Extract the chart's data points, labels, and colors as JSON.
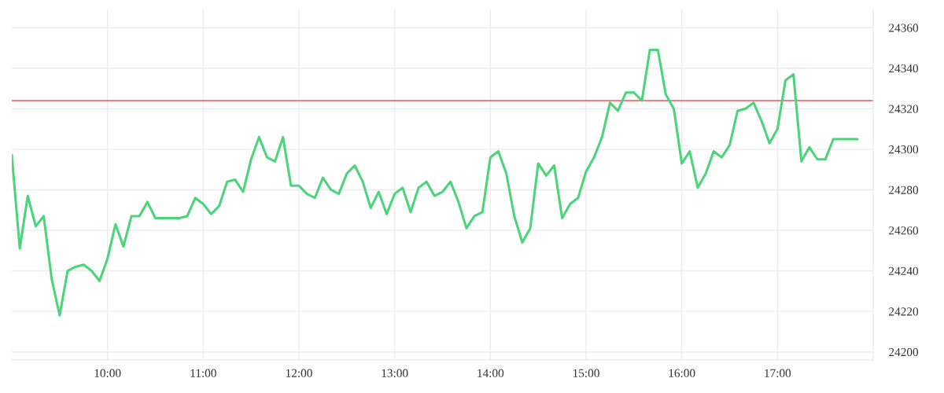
{
  "chart_data": {
    "type": "line",
    "x": [
      9.0,
      9.0833,
      9.1667,
      9.25,
      9.3333,
      9.4167,
      9.5,
      9.5833,
      9.6667,
      9.75,
      9.8333,
      9.9167,
      10.0,
      10.0833,
      10.1667,
      10.25,
      10.3333,
      10.4167,
      10.5,
      10.5833,
      10.6667,
      10.75,
      10.8333,
      10.9167,
      11.0,
      11.0833,
      11.1667,
      11.25,
      11.3333,
      11.4167,
      11.5,
      11.5833,
      11.6667,
      11.75,
      11.8333,
      11.9167,
      12.0,
      12.0833,
      12.1667,
      12.25,
      12.3333,
      12.4167,
      12.5,
      12.5833,
      12.6667,
      12.75,
      12.8333,
      12.9167,
      13.0,
      13.0833,
      13.1667,
      13.25,
      13.3333,
      13.4167,
      13.5,
      13.5833,
      13.6667,
      13.75,
      13.8333,
      13.9167,
      14.0,
      14.0833,
      14.1667,
      14.25,
      14.3333,
      14.4167,
      14.5,
      14.5833,
      14.6667,
      14.75,
      14.8333,
      14.9167,
      15.0,
      15.0833,
      15.1667,
      15.25,
      15.3333,
      15.4167,
      15.5,
      15.5833,
      15.6667,
      15.75,
      15.8333,
      15.9167,
      16.0,
      16.0833,
      16.1667,
      16.25,
      16.3333,
      16.4167,
      16.5,
      16.5833,
      16.6667,
      16.75,
      16.8333,
      16.9167,
      17.0,
      17.0833,
      17.1667,
      17.25,
      17.3333,
      17.4167,
      17.5,
      17.5833,
      17.6667,
      17.75,
      17.8333
    ],
    "series": [
      {
        "color": "#4cd47a",
        "values": [
          24297,
          24251,
          24277,
          24262,
          24267,
          24236,
          24218,
          24240,
          24242,
          24243,
          24240,
          24235,
          24246,
          24263,
          24252,
          24267,
          24267,
          24274,
          24266,
          24266,
          24266,
          24266,
          24267,
          24276,
          24273,
          24268,
          24272,
          24284,
          24285,
          24279,
          24295,
          24306,
          24296,
          24294,
          24306,
          24282,
          24282,
          24278,
          24276,
          24286,
          24280,
          24278,
          24288,
          24292,
          24284,
          24271,
          24279,
          24268,
          24278,
          24281,
          24269,
          24281,
          24284,
          24277,
          24279,
          24284,
          24274,
          24261,
          24267,
          24269,
          24296,
          24299,
          24288,
          24267,
          24254,
          24261,
          24293,
          24287,
          24292,
          24266,
          24273,
          24276,
          24289,
          24296,
          24306,
          24323,
          24319,
          24328,
          24328,
          24324,
          24349,
          24349,
          24327,
          24320,
          24293,
          24299,
          24281,
          24288,
          24299,
          24296,
          24302,
          24319,
          24320,
          24323,
          24314,
          24303,
          24310,
          24334,
          24337,
          24294,
          24301,
          24295,
          24295,
          24305,
          24305,
          24305,
          24305
        ]
      }
    ],
    "xlim": [
      9,
      18
    ],
    "xticks": [
      {
        "value": 10,
        "label": "10:00"
      },
      {
        "value": 11,
        "label": "11:00"
      },
      {
        "value": 12,
        "label": "12:00"
      },
      {
        "value": 13,
        "label": "13:00"
      },
      {
        "value": 14,
        "label": "14:00"
      },
      {
        "value": 15,
        "label": "15:00"
      },
      {
        "value": 16,
        "label": "16:00"
      },
      {
        "value": 17,
        "label": "17:00"
      }
    ],
    "ylim": [
      24196,
      24369
    ],
    "yticks": [
      24200,
      24220,
      24240,
      24260,
      24280,
      24300,
      24320,
      24340,
      24360
    ],
    "ref_lines": [
      {
        "axis": "y",
        "value": 24324,
        "color": "#e8575a"
      }
    ],
    "grid": true,
    "legend": false,
    "marker": "none",
    "line_style": "solid"
  }
}
